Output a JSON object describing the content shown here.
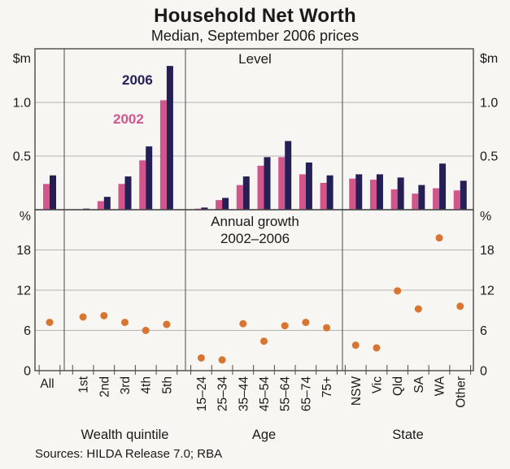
{
  "header": {
    "title": "Household Net Worth",
    "subtitle": "Median, September 2006 prices"
  },
  "footer": {
    "sources": "Sources: HILDA Release 7.0; RBA"
  },
  "colors": {
    "series_2002": "#d2568c",
    "series_2006": "#242056",
    "growth_dot": "#d97530",
    "gridline": "#b3b3b3",
    "frame": "#4a4a4a",
    "text": "#1a1a1a"
  },
  "chart_data": {
    "type": [
      "bar",
      "scatter"
    ],
    "grid": true,
    "legend_position": "inline-annotations-top-left-panel",
    "categories_groups": [
      {
        "label": "",
        "items": [
          "All"
        ]
      },
      {
        "label": "Wealth quintile",
        "items": [
          "1st",
          "2nd",
          "3rd",
          "4th",
          "5th"
        ]
      },
      {
        "label": "Age",
        "items": [
          "15–24",
          "25–34",
          "35–44",
          "45–54",
          "55–64",
          "65–74",
          "75+"
        ]
      },
      {
        "label": "State",
        "items": [
          "NSW",
          "Vic",
          "Qld",
          "SA",
          "WA",
          "Other"
        ]
      }
    ],
    "panels": [
      {
        "type": "bar",
        "caption": "Level",
        "unit_left": "$m",
        "unit_right": "$m",
        "ylim": [
          0,
          1.5
        ],
        "yticks": [
          0.5,
          1.0
        ],
        "ytick_labels": [
          "0.5",
          "1.0"
        ],
        "series": [
          {
            "name": "2002",
            "color": "#d2568c",
            "values": [
              0.24,
              0.005,
              0.08,
              0.24,
              0.46,
              1.02,
              0.01,
              0.09,
              0.23,
              0.41,
              0.49,
              0.33,
              0.25,
              0.29,
              0.28,
              0.19,
              0.15,
              0.2,
              0.18
            ]
          },
          {
            "name": "2006",
            "color": "#242056",
            "values": [
              0.32,
              0.01,
              0.12,
              0.31,
              0.59,
              1.34,
              0.02,
              0.11,
              0.31,
              0.49,
              0.64,
              0.44,
              0.32,
              0.33,
              0.33,
              0.3,
              0.23,
              0.43,
              0.27
            ]
          }
        ]
      },
      {
        "type": "scatter",
        "caption": "Annual growth",
        "caption2": "2002–2006",
        "unit_left": "%",
        "unit_right": "%",
        "ylim": [
          0,
          24
        ],
        "yticks": [
          0,
          6,
          12,
          18
        ],
        "ytick_labels": [
          "0",
          "6",
          "12",
          "18"
        ],
        "series": [
          {
            "name": "Annual growth 2002–2006",
            "color": "#d97530",
            "values": [
              7.2,
              8.0,
              8.2,
              7.2,
              6.0,
              6.9,
              1.9,
              1.6,
              7.0,
              4.4,
              6.7,
              7.2,
              6.4,
              3.8,
              3.4,
              11.9,
              9.2,
              19.8,
              9.6
            ]
          }
        ]
      }
    ]
  }
}
